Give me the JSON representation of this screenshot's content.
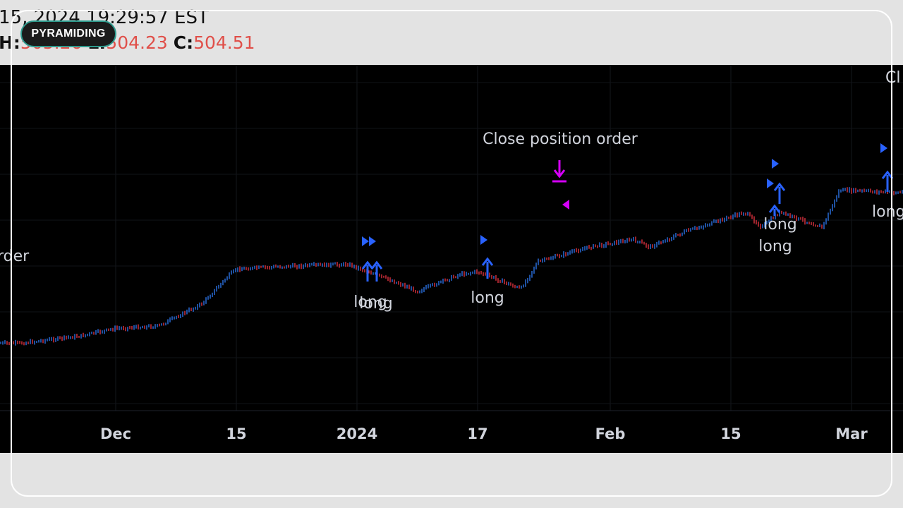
{
  "header": {
    "datetime": "15, 2024 19:29:57 EST",
    "h_label": "H:",
    "h_value": "505.26",
    "l_label": "L:",
    "l_value": "504.23",
    "c_label": "C:",
    "c_value": "504.51"
  },
  "badge": {
    "label": "PYRAMIDING"
  },
  "colors": {
    "background": "#000000",
    "up_bar": "#2e7cf6",
    "down_bar": "#f23645",
    "long_marker": "#2962ff",
    "close_marker": "#d500f9",
    "label_text": "#d1d4dc",
    "header_value": "#e0504a"
  },
  "chart_data": {
    "type": "ohlc",
    "x_axis": {
      "type": "date",
      "ticks": [
        "Dec",
        "15",
        "2024",
        "17",
        "Feb",
        "15",
        "Mar"
      ]
    },
    "series": [
      {
        "values": [
          [
            "2023-11-20",
            470.5
          ],
          [
            "2023-11-27",
            472.0
          ],
          [
            "2023-12-01",
            473.5
          ],
          [
            "2023-12-06",
            474.0
          ],
          [
            "2023-12-11",
            478.5
          ],
          [
            "2023-12-14",
            484.0
          ],
          [
            "2023-12-15",
            485.5
          ],
          [
            "2023-12-20",
            486.0
          ],
          [
            "2023-12-28",
            486.5
          ],
          [
            "2024-01-03",
            482.5
          ],
          [
            "2024-01-05",
            481.0
          ],
          [
            "2024-01-10",
            484.5
          ],
          [
            "2024-01-12",
            485.0
          ],
          [
            "2024-01-17",
            481.5
          ],
          [
            "2024-01-19",
            487.0
          ],
          [
            "2024-01-25",
            490.0
          ],
          [
            "2024-01-30",
            491.5
          ],
          [
            "2024-02-01",
            490.0
          ],
          [
            "2024-02-05",
            493.0
          ],
          [
            "2024-02-12",
            497.0
          ],
          [
            "2024-02-14",
            494.0
          ],
          [
            "2024-02-16",
            497.0
          ],
          [
            "2024-02-21",
            494.0
          ],
          [
            "2024-02-23",
            501.5
          ],
          [
            "2024-03-01",
            501.0
          ],
          [
            "2024-03-05",
            504.5
          ],
          [
            "2024-03-08",
            503.0
          ]
        ]
      }
    ]
  },
  "annotations": {
    "long": "long",
    "close": "Close position order",
    "close_cut_right": "Cl",
    "order_cut_left": "rder"
  }
}
